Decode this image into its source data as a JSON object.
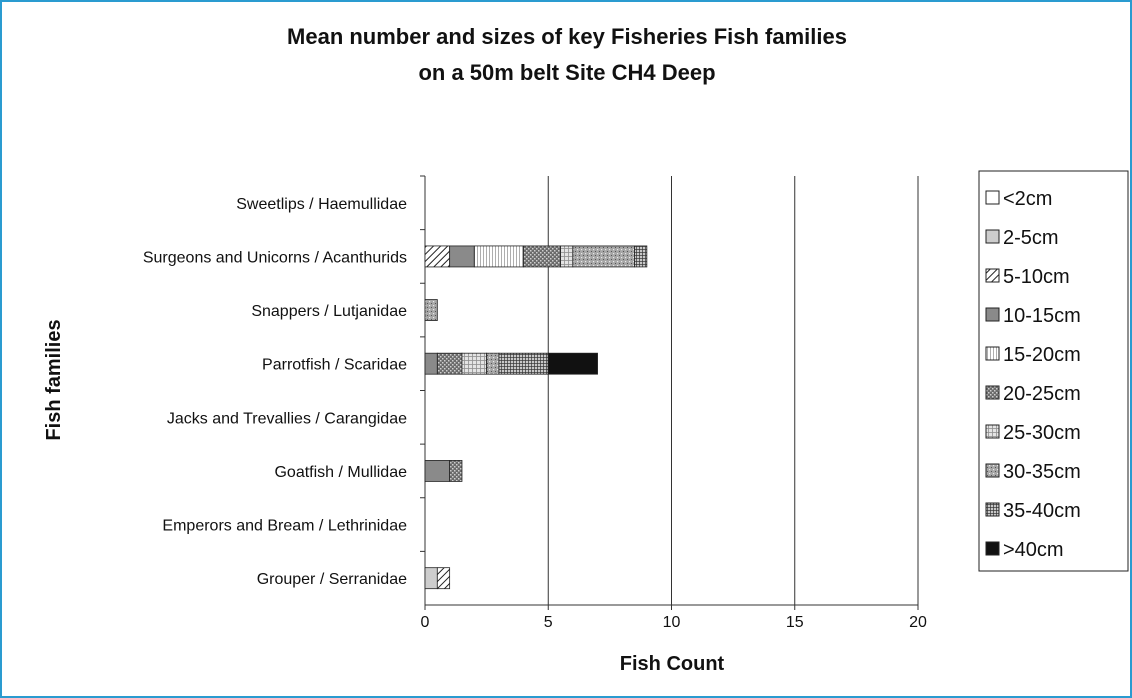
{
  "chart_data": {
    "type": "bar",
    "orientation": "horizontal",
    "stacked": true,
    "title": [
      "Mean number and sizes of key Fisheries Fish families",
      "on a 50m belt Site CH4 Deep"
    ],
    "xlabel": "Fish Count",
    "ylabel": "Fish families",
    "xlim": [
      0,
      20
    ],
    "xticks": [
      "0",
      "5",
      "10",
      "15",
      "20"
    ],
    "grid": "vertical",
    "legend_position": "right",
    "categories": [
      "Sweetlips / Haemullidae",
      "Surgeons and Unicorns / Acanthurids",
      "Snappers / Lutjanidae",
      "Parrotfish / Scaridae",
      "Jacks and Trevallies / Carangidae",
      "Goatfish / Mullidae",
      "Emperors and Bream / Lethrinidae",
      "Grouper  / Serranidae"
    ],
    "series": [
      {
        "name": "<2cm",
        "pattern": "white",
        "values": [
          0,
          0,
          0,
          0,
          0,
          0,
          0,
          0
        ]
      },
      {
        "name": "2-5cm",
        "pattern": "light-gray",
        "values": [
          0,
          0,
          0,
          0,
          0,
          0,
          0,
          0.5
        ]
      },
      {
        "name": "5-10cm",
        "pattern": "diagonal-hatch",
        "values": [
          0,
          1,
          0,
          0,
          0,
          0,
          0,
          0.5
        ]
      },
      {
        "name": "10-15cm",
        "pattern": "medium-gray",
        "values": [
          0,
          1,
          0,
          0.5,
          0,
          1,
          0,
          0
        ]
      },
      {
        "name": "15-20cm",
        "pattern": "fine-vertical-lines",
        "values": [
          0,
          2,
          0,
          0,
          0,
          0,
          0,
          0
        ]
      },
      {
        "name": "20-25cm",
        "pattern": "dark-speckle",
        "values": [
          0,
          1.5,
          0,
          1,
          0,
          0.5,
          0,
          0
        ]
      },
      {
        "name": "25-30cm",
        "pattern": "light-grid",
        "values": [
          0,
          0.5,
          0,
          1,
          0,
          0,
          0,
          0
        ]
      },
      {
        "name": "30-35cm",
        "pattern": "gray-speckle",
        "values": [
          0,
          2.5,
          0.5,
          0.5,
          0,
          0,
          0,
          0
        ]
      },
      {
        "name": "35-40cm",
        "pattern": "dense-grid",
        "values": [
          0,
          0.5,
          0,
          2,
          0,
          0,
          0,
          0
        ]
      },
      {
        "name": ">40cm",
        "pattern": "black",
        "values": [
          0,
          0,
          0,
          2,
          0,
          0,
          0,
          0
        ]
      }
    ]
  }
}
